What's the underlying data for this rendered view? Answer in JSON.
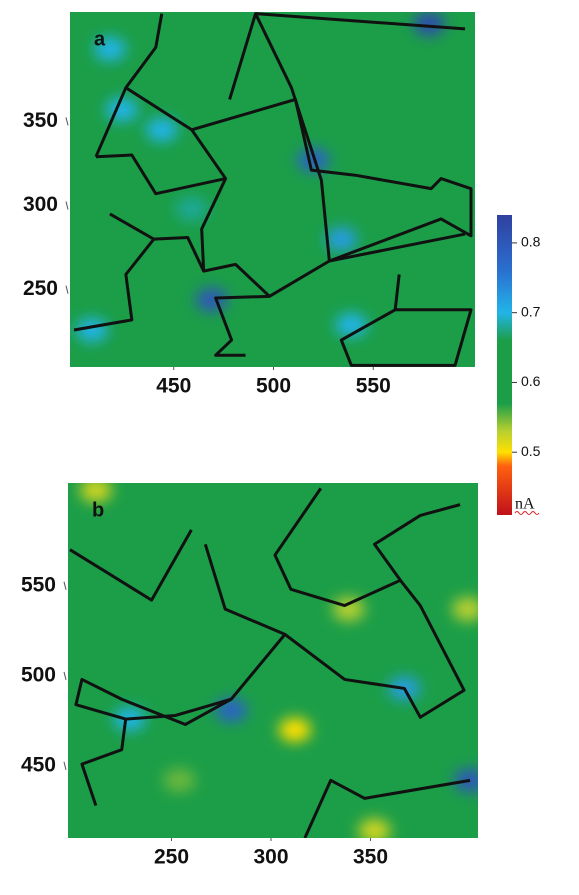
{
  "chart_data": [
    {
      "type": "heatmap",
      "label": "a",
      "xlim": [
        398,
        601
      ],
      "ylim": [
        204,
        415
      ],
      "xticks": [
        450,
        500,
        550
      ],
      "yticks": [
        250,
        300,
        350
      ],
      "background": 0.6,
      "spots": {
        "x": [
          578,
          520,
          469,
          444,
          424,
          418,
          409,
          534,
          539,
          459
        ],
        "y": [
          408,
          327,
          244,
          345,
          357,
          393,
          226,
          280,
          229,
          298
        ],
        "values": [
          0.82,
          0.78,
          0.8,
          0.7,
          0.7,
          0.7,
          0.7,
          0.72,
          0.7,
          0.68
        ]
      },
      "boundaries": [
        {
          "x": [
            400,
            429,
            426,
            440,
            418
          ],
          "y": [
            226,
            232,
            259,
            280,
            295
          ]
        },
        {
          "x": [
            440,
            457,
            465,
            481,
            498
          ],
          "y": [
            280,
            281,
            261,
            265,
            246
          ]
        },
        {
          "x": [
            411,
            426,
            441,
            444
          ],
          "y": [
            329,
            370,
            394,
            414
          ]
        },
        {
          "x": [
            426,
            459,
            476,
            464,
            465
          ],
          "y": [
            370,
            345,
            316,
            286,
            261
          ]
        },
        {
          "x": [
            411,
            429,
            441,
            476
          ],
          "y": [
            329,
            330,
            307,
            316
          ]
        },
        {
          "x": [
            459,
            511,
            519,
            541,
            579,
            584,
            599,
            599,
            584,
            528
          ],
          "y": [
            345,
            363,
            321,
            318,
            310,
            316,
            310,
            282,
            292,
            267
          ]
        },
        {
          "x": [
            478,
            491,
            596
          ],
          "y": [
            363,
            414,
            405
          ]
        },
        {
          "x": [
            491,
            509,
            524,
            528,
            498,
            471,
            479,
            471,
            486
          ],
          "y": [
            414,
            370,
            315,
            267,
            246,
            245,
            220,
            211,
            211
          ]
        },
        {
          "x": [
            528,
            596
          ],
          "y": [
            267,
            283
          ]
        },
        {
          "x": [
            563,
            561,
            534,
            539,
            591,
            599,
            561
          ],
          "y": [
            259,
            238,
            220,
            205,
            205,
            238,
            238
          ]
        }
      ]
    },
    {
      "type": "heatmap",
      "label": "b",
      "xlim": [
        198,
        404
      ],
      "ylim": [
        410,
        607
      ],
      "xticks": [
        250,
        300,
        350
      ],
      "yticks": [
        450,
        500,
        550
      ],
      "background": 0.6,
      "spots": {
        "x": [
          280,
          367,
          400,
          312,
          339,
          212,
          352,
          254,
          399,
          229
        ],
        "y": [
          481,
          493,
          442,
          470,
          537,
          603,
          414,
          442,
          537,
          476
        ],
        "values": [
          0.78,
          0.72,
          0.8,
          0.5,
          0.53,
          0.52,
          0.52,
          0.55,
          0.53,
          0.7
        ]
      },
      "boundaries": [
        {
          "x": [
            199,
            240,
            260
          ],
          "y": [
            570,
            542,
            581
          ]
        },
        {
          "x": [
            267,
            277,
            307,
            337,
            367,
            375,
            397,
            375,
            365,
            352,
            375,
            395
          ],
          "y": [
            573,
            537,
            523,
            498,
            493,
            477,
            492,
            539,
            553,
            573,
            589,
            595
          ]
        },
        {
          "x": [
            325,
            302,
            310,
            337,
            365
          ],
          "y": [
            604,
            567,
            548,
            539,
            553
          ]
        },
        {
          "x": [
            307,
            280,
            257,
            225,
            205,
            202,
            227,
            252,
            280
          ],
          "y": [
            523,
            487,
            473,
            487,
            498,
            484,
            476,
            478,
            487
          ]
        },
        {
          "x": [
            227,
            225,
            205,
            212
          ],
          "y": [
            476,
            459,
            451,
            428
          ]
        },
        {
          "x": [
            317,
            330,
            347,
            400
          ],
          "y": [
            410,
            442,
            432,
            442
          ]
        }
      ]
    },
    {
      "type": "colorbar",
      "label": "nA",
      "ylim": [
        0.41,
        0.84
      ],
      "yticks": [
        0.5,
        0.6,
        0.7,
        0.8
      ],
      "colormap": {
        "values": [
          0.41,
          0.48,
          0.5,
          0.53,
          0.57,
          0.66,
          0.7,
          0.76,
          0.84
        ],
        "colors": [
          "#c0101a",
          "#ff6010",
          "#ffe000",
          "#b8d030",
          "#1c9e48",
          "#1c9e48",
          "#22b4e8",
          "#2a70d0",
          "#3040a0"
        ]
      }
    }
  ]
}
